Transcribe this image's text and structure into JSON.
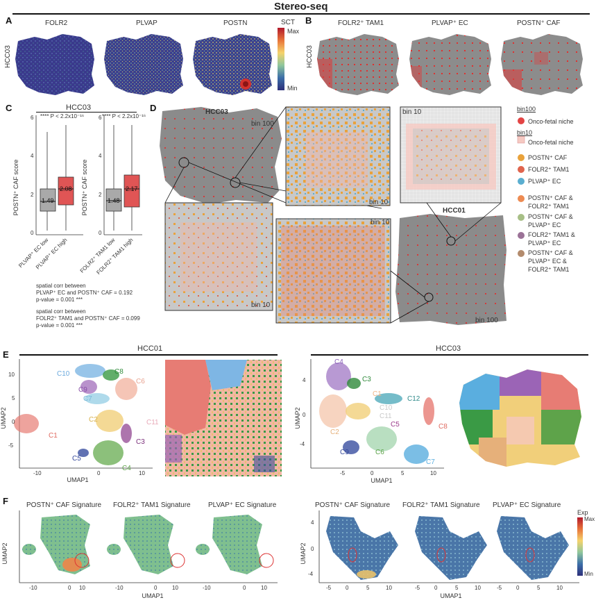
{
  "figure": {
    "title": "Stereo-seq"
  },
  "panel_a": {
    "label": "A",
    "sample": "HCC03",
    "genes": [
      "FOLR2",
      "PLVAP",
      "POSTN"
    ],
    "legend_title": "SCT",
    "legend_max": "Max",
    "legend_min": "Min"
  },
  "panel_b": {
    "label": "B",
    "sample": "HCC03",
    "cells": [
      "FOLR2⁺ TAM1",
      "PLVAP⁺ EC",
      "POSTN⁺ CAF"
    ]
  },
  "panel_c": {
    "label": "C",
    "title": "HCC03",
    "ylabel": "POSTN⁺ CAF score",
    "sig1": "**** P < 2.2x10⁻¹⁶",
    "sig2": "**** P < 2.2x10⁻¹⁶",
    "corr1_line1": "spatial corr between",
    "corr1_line2": "PLVAP⁺ EC and POSTN⁺ CAF = 0.192",
    "corr1_line3": "p-value = 0.001 ***",
    "corr2_line1": "spatial corr between",
    "corr2_line2": "FOLR2⁺ TAM1 and POSTN⁺ CAF = 0.099",
    "corr2_line3": "p-value = 0.001 ***",
    "yticks": [
      "0",
      "2",
      "4",
      "6"
    ]
  },
  "panel_d": {
    "label": "D",
    "sample1": "HCC03",
    "sample2": "HCC01",
    "bin100": "bin 100",
    "bin10": "bin 10",
    "legend_bin100": "bin100",
    "legend_bin10": "bin10",
    "legend_items": [
      "Onco-fetal niche",
      "Onco-fetal niche",
      "POSTN⁺ CAF",
      "FOLR2⁺ TAM1",
      "PLVAP⁺ EC",
      "POSTN⁺ CAF &",
      "FOLR2⁺ TAM1",
      "POSTN⁺ CAF &",
      "PLVAP⁺ EC",
      "FOLR2⁺ TAM1 &",
      "PLVAP⁺ EC",
      "POSTN⁺ CAF &",
      "PLVAP⁺ EC &",
      "FOLR2⁺ TAM1"
    ],
    "colors": {
      "onco100": "#e34444",
      "onco10": "#f6c9c2",
      "caf": "#e9a23b",
      "tam": "#e0644d",
      "ec": "#5aaed0",
      "caf_tam": "#ed8b52",
      "caf_ec": "#a7bf86",
      "tam_ec": "#9b7297",
      "all3": "#b38b6d"
    }
  },
  "panel_e": {
    "label": "E",
    "title1": "HCC01",
    "title2": "HCC03",
    "xlabel": "UMAP1",
    "ylabel": "UMAP2",
    "clusters1": [
      "C10",
      "C8",
      "C6",
      "C9",
      "C7",
      "C2",
      "C11",
      "C1",
      "C3",
      "C5",
      "C4"
    ],
    "clusters2": [
      "C4",
      "C3",
      "C1",
      "C12",
      "C10",
      "C11",
      "C5",
      "C2",
      "C8",
      "C9",
      "C6",
      "C7"
    ],
    "ticks1_x": [
      "-10",
      "0",
      "10"
    ],
    "ticks1_y": [
      "10",
      "5",
      "0",
      "-5"
    ],
    "ticks2_x": [
      "-5",
      "0",
      "5",
      "10"
    ],
    "ticks2_y": [
      "4",
      "0",
      "-4"
    ]
  },
  "panel_f": {
    "label": "F",
    "sig1": "POSTN⁺ CAF Signature",
    "sig2": "FOLR2⁺ TAM1 Signature",
    "sig3": "PLVAP⁺ EC Signature",
    "sig4": "POSTN⁺ CAF Signature",
    "sig5": "FOLR2⁺ TAM1 Signature",
    "sig6": "PLVAP⁺ EC Signature",
    "xlabel": "UMAP1",
    "ylabel": "UMAP2",
    "legend_title": "Exp",
    "legend_max": "Max",
    "legend_min": "Min",
    "ticks1_x": [
      "-10",
      "0",
      "10"
    ],
    "ticks2_x": [
      "-5",
      "0",
      "5",
      "10"
    ],
    "ticks2_y": [
      "4",
      "0",
      "-4"
    ]
  }
}
